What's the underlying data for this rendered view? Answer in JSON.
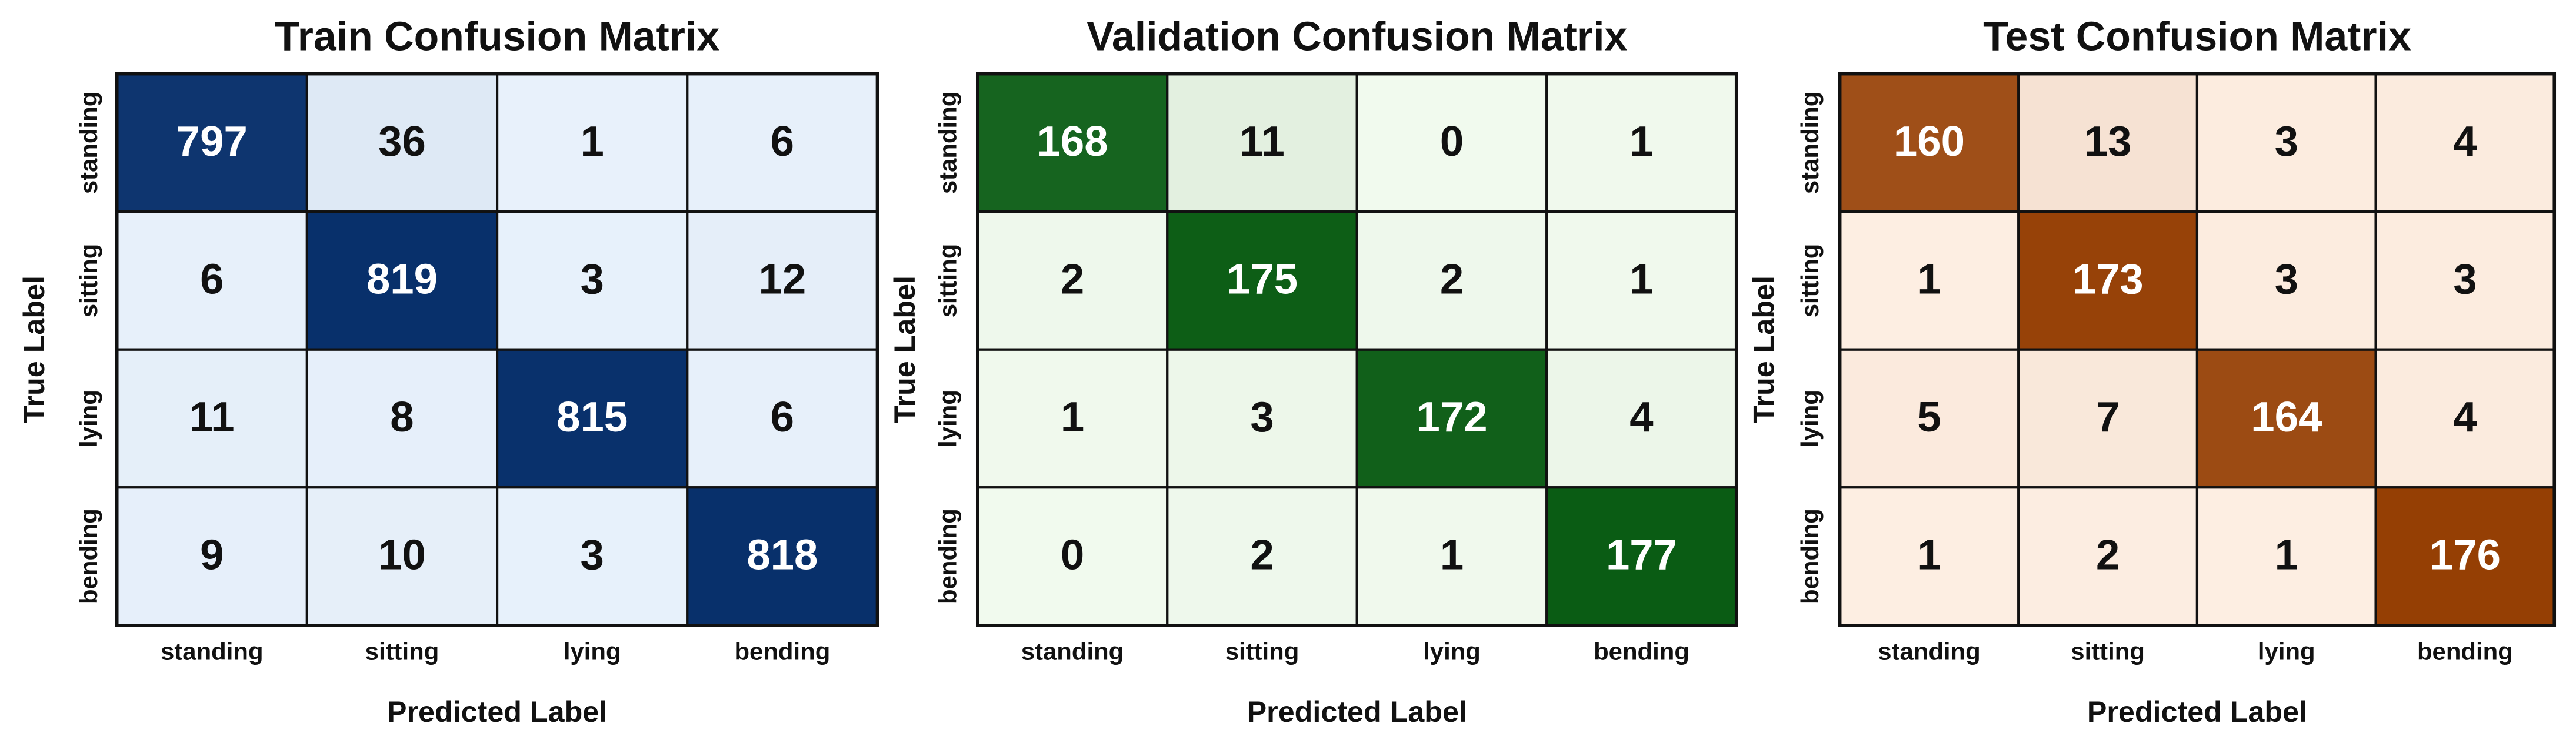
{
  "chart_data": [
    {
      "type": "heatmap",
      "title": "Train Confusion Matrix",
      "xlabel": "Predicted Label",
      "ylabel": "True Label",
      "x": [
        "standing",
        "sitting",
        "lying",
        "bending"
      ],
      "y": [
        "standing",
        "sitting",
        "lying",
        "bending"
      ],
      "z": [
        [
          797,
          36,
          1,
          6
        ],
        [
          6,
          819,
          3,
          12
        ],
        [
          11,
          8,
          815,
          6
        ],
        [
          9,
          10,
          3,
          818
        ]
      ],
      "colors": [
        "#e8f1fb",
        "#08306b"
      ]
    },
    {
      "type": "heatmap",
      "title": "Validation Confusion Matrix",
      "xlabel": "Predicted Label",
      "ylabel": "True Label",
      "x": [
        "standing",
        "sitting",
        "lying",
        "bending"
      ],
      "y": [
        "standing",
        "sitting",
        "lying",
        "bending"
      ],
      "z": [
        [
          168,
          11,
          0,
          1
        ],
        [
          2,
          175,
          2,
          1
        ],
        [
          1,
          3,
          172,
          4
        ],
        [
          0,
          2,
          1,
          177
        ]
      ],
      "colors": [
        "#f1faee",
        "#0a5c14"
      ]
    },
    {
      "type": "heatmap",
      "title": "Test Confusion Matrix",
      "xlabel": "Predicted Label",
      "ylabel": "True Label",
      "x": [
        "standing",
        "sitting",
        "lying",
        "bending"
      ],
      "y": [
        "standing",
        "sitting",
        "lying",
        "bending"
      ],
      "z": [
        [
          160,
          13,
          3,
          4
        ],
        [
          1,
          173,
          3,
          3
        ],
        [
          5,
          7,
          164,
          4
        ],
        [
          1,
          2,
          1,
          176
        ]
      ],
      "colors": [
        "#fdeee2",
        "#953f04"
      ]
    }
  ]
}
